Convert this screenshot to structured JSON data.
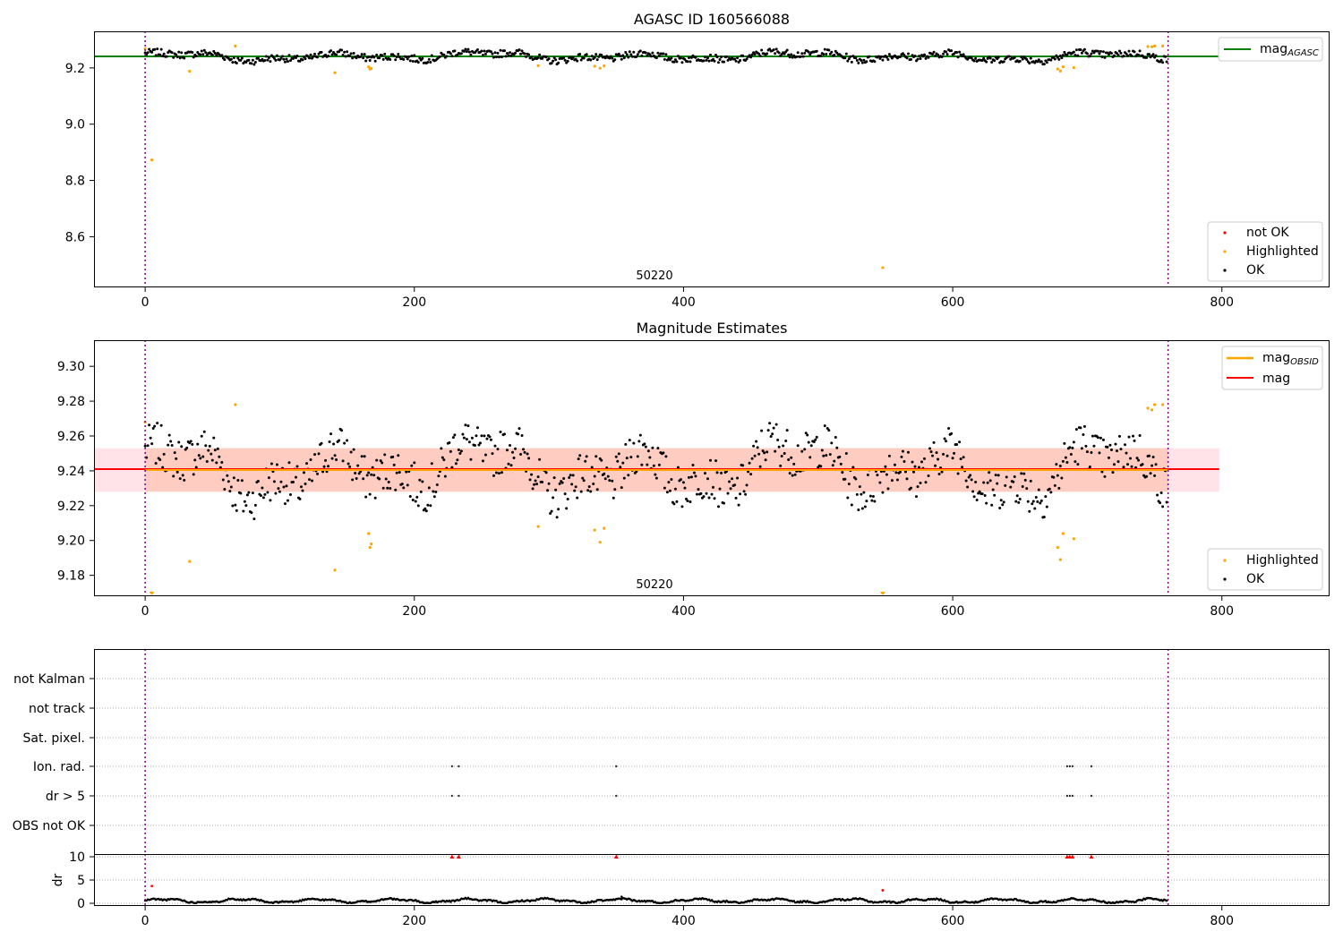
{
  "colors": {
    "ok": "#000000",
    "highlighted": "#ffa500",
    "not_ok": "#ff0000",
    "mag_agasc_line": "#008000",
    "mag_line": "#ff0000",
    "mag_obsid_line": "#ffa500",
    "obs_boundary": "#800080",
    "band_outer": "#ffc0cb",
    "band_inner": "#ffa07a"
  },
  "chart_data": [
    {
      "type": "scatter",
      "title": "AGASC ID 160566088",
      "annotation": "50220",
      "xlim": [
        -38,
        880
      ],
      "ylim": [
        8.42,
        9.33
      ],
      "xticks": [
        0,
        200,
        400,
        600,
        800
      ],
      "yticks": [
        8.6,
        8.8,
        9.0,
        9.2
      ],
      "x_tick_labels": [
        "0",
        "200",
        "400",
        "600",
        "800"
      ],
      "y_tick_labels": [
        "8.6",
        "8.8",
        "9.0",
        "9.2"
      ],
      "vlines": [
        0,
        760
      ],
      "hlines": [
        {
          "name": "magAGASC",
          "y": 9.241,
          "x": [
            -38,
            798
          ]
        }
      ],
      "legend_top": {
        "label_main": "mag",
        "label_sub": "AGASC"
      },
      "legend_bottom": [
        "not OK",
        "Highlighted",
        "OK"
      ],
      "ok_series": {
        "name": "OK",
        "n": 760,
        "base": 9.241,
        "amplitude": 0.028
      },
      "highlighted": [
        {
          "x": 0,
          "y": 9.268
        },
        {
          "x": 5,
          "y": 8.873
        },
        {
          "x": 33,
          "y": 9.188
        },
        {
          "x": 67,
          "y": 9.278
        },
        {
          "x": 141,
          "y": 9.183
        },
        {
          "x": 166,
          "y": 9.204
        },
        {
          "x": 167,
          "y": 9.196
        },
        {
          "x": 168,
          "y": 9.198
        },
        {
          "x": 292,
          "y": 9.208
        },
        {
          "x": 334,
          "y": 9.206
        },
        {
          "x": 338,
          "y": 9.199
        },
        {
          "x": 341,
          "y": 9.207
        },
        {
          "x": 548,
          "y": 8.49
        },
        {
          "x": 678,
          "y": 9.196
        },
        {
          "x": 680,
          "y": 9.189
        },
        {
          "x": 682,
          "y": 9.204
        },
        {
          "x": 690,
          "y": 9.201
        },
        {
          "x": 745,
          "y": 9.276
        },
        {
          "x": 748,
          "y": 9.275
        },
        {
          "x": 750,
          "y": 9.278
        },
        {
          "x": 756,
          "y": 9.278
        }
      ],
      "not_ok": []
    },
    {
      "type": "scatter",
      "title": "Magnitude Estimates",
      "annotation": "50220",
      "xlim": [
        -38,
        880
      ],
      "ylim": [
        9.168,
        9.315
      ],
      "xticks": [
        0,
        200,
        400,
        600,
        800
      ],
      "yticks": [
        9.18,
        9.2,
        9.22,
        9.24,
        9.26,
        9.28,
        9.3
      ],
      "x_tick_labels": [
        "0",
        "200",
        "400",
        "600",
        "800"
      ],
      "y_tick_labels": [
        "9.18",
        "9.20",
        "9.22",
        "9.24",
        "9.26",
        "9.28",
        "9.30"
      ],
      "vlines": [
        0,
        760
      ],
      "mag": {
        "name": "mag",
        "y": 9.241,
        "x": [
          -38,
          798
        ]
      },
      "mag_obsid": {
        "name": "magOBSID",
        "y": 9.2405,
        "x": [
          0,
          760
        ]
      },
      "band_outer": {
        "y": [
          9.228,
          9.253
        ],
        "x": [
          -38,
          798
        ]
      },
      "band_inner": {
        "y": [
          9.228,
          9.253
        ],
        "x": [
          0,
          760
        ]
      },
      "legend_top": [
        {
          "label_main": "mag",
          "label_sub": "OBSID"
        },
        {
          "label_main": "mag",
          "label_sub": ""
        }
      ],
      "legend_bottom": [
        "Highlighted",
        "OK"
      ],
      "clipped_markers": [
        {
          "x": 5
        },
        {
          "x": 548
        }
      ],
      "ok_series": {
        "name": "OK",
        "n": 760,
        "base": 9.241,
        "amplitude": 0.028
      }
    },
    {
      "type": "scatter",
      "title": "",
      "xlim": [
        -38,
        880
      ],
      "vlines": [
        0,
        760
      ],
      "flag_rows": [
        "not Kalman",
        "not track",
        "Sat. pixel.",
        "Ion. rad.",
        "dr > 5",
        "OBS not OK"
      ],
      "flags": {
        "not Kalman": [],
        "not track": [],
        "Sat. pixel.": [],
        "Ion. rad.": [
          228,
          233,
          350,
          685,
          687,
          689,
          703
        ],
        "dr > 5": [
          228,
          233,
          350,
          685,
          687,
          689,
          703
        ],
        "OBS not OK": []
      }
    },
    {
      "type": "scatter",
      "title": "",
      "xlim": [
        -38,
        880
      ],
      "ylim": [
        -0.5,
        10.5
      ],
      "ylabel": "dr",
      "yticks": [
        0,
        5,
        10
      ],
      "y_tick_labels": [
        "0",
        "5",
        "10"
      ],
      "xticks": [
        0,
        200,
        400,
        600,
        800
      ],
      "x_tick_labels": [
        "0",
        "200",
        "400",
        "600",
        "800"
      ],
      "vlines": [
        0,
        760
      ],
      "dr_clipped": [
        228,
        233,
        350,
        685,
        687,
        689,
        703
      ],
      "dr_red_points": [
        {
          "x": 5,
          "y": 3.7
        },
        {
          "x": 548,
          "y": 2.8
        }
      ],
      "dr_black_extra": [
        {
          "x": 354,
          "y": 1.4
        }
      ]
    }
  ]
}
